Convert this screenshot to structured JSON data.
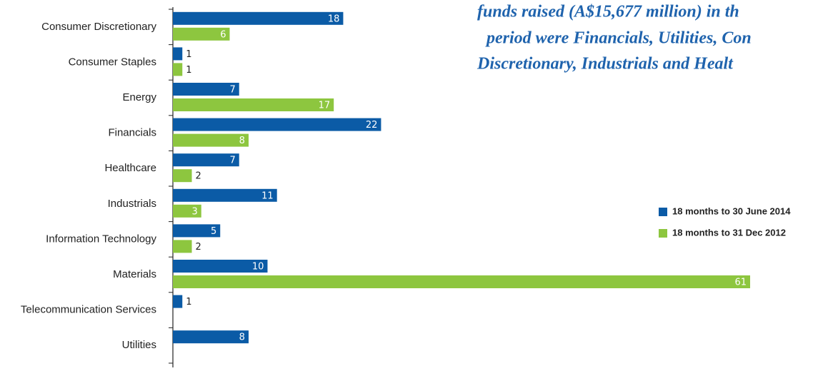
{
  "chart_data": {
    "type": "bar",
    "orientation": "horizontal",
    "annotation": [
      "funds raised (A$15,677 million) in th",
      "period were Financials, Utilities, Con",
      "Discretionary, Industrials and Healt"
    ],
    "categories": [
      "Consumer Discretionary",
      "Consumer Staples",
      "Energy",
      "Financials",
      "Healthcare",
      "Industrials",
      "Information Technology",
      "Materials",
      "Telecommunication Services",
      "Utilities"
    ],
    "series": [
      {
        "name": "18 months to 30 June 2014",
        "color": "#0b5ba6",
        "values": [
          18,
          1,
          7,
          22,
          7,
          11,
          5,
          10,
          1,
          8
        ]
      },
      {
        "name": "18 months to 31 Dec 2012",
        "color": "#8dc63f",
        "values": [
          6,
          1,
          17,
          8,
          2,
          3,
          2,
          61,
          null,
          null
        ]
      }
    ],
    "legend": "right"
  }
}
